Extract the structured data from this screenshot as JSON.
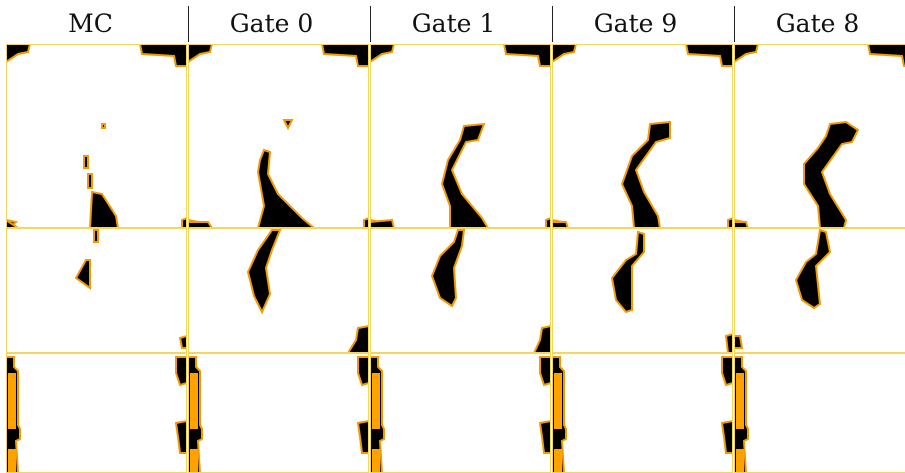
{
  "columns": [
    "MC",
    "Gate 0",
    "Gate 1",
    "Gate 9",
    "Gate 8"
  ],
  "colors": {
    "mask": "#000000",
    "boundary": "#f39a00",
    "fill_orange": "#ffa200",
    "background": "#ffffff",
    "grid": "#f3d65a",
    "separator": "#222222"
  },
  "grid": {
    "rows": 3,
    "columns": 5,
    "panel_content": "binary segmentation masks with orange boundary"
  }
}
